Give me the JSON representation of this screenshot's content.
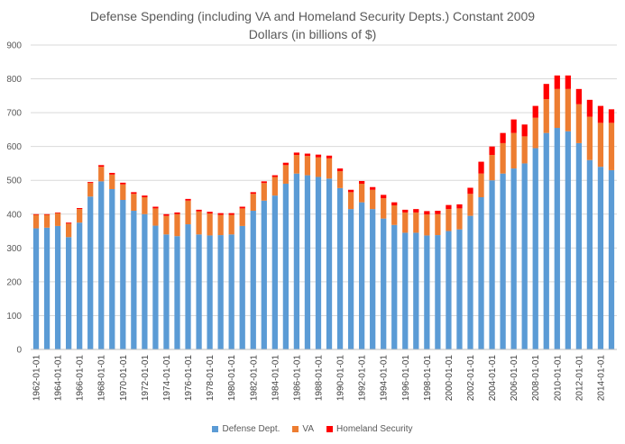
{
  "chart_data": {
    "type": "bar",
    "stacked": true,
    "title": "Defense Spending (including VA and Homeland Security Depts.) Constant 2009 Dollars (in billions of $)",
    "title_lines": [
      "Defense Spending (including VA and Homeland Security Depts.) Constant 2009",
      "Dollars (in billions of $)"
    ],
    "categories": [
      "1962-01-01",
      "1963-01-01",
      "1964-01-01",
      "1965-01-01",
      "1966-01-01",
      "1967-01-01",
      "1968-01-01",
      "1969-01-01",
      "1970-01-01",
      "1971-01-01",
      "1972-01-01",
      "1973-01-01",
      "1974-01-01",
      "1975-01-01",
      "1976-01-01",
      "1977-01-01",
      "1978-01-01",
      "1979-01-01",
      "1980-01-01",
      "1981-01-01",
      "1982-01-01",
      "1983-01-01",
      "1984-01-01",
      "1985-01-01",
      "1986-01-01",
      "1987-01-01",
      "1988-01-01",
      "1989-01-01",
      "1990-01-01",
      "1991-01-01",
      "1992-01-01",
      "1993-01-01",
      "1994-01-01",
      "1995-01-01",
      "1996-01-01",
      "1997-01-01",
      "1998-01-01",
      "1999-01-01",
      "2000-01-01",
      "2001-01-01",
      "2002-01-01",
      "2003-01-01",
      "2004-01-01",
      "2005-01-01",
      "2006-01-01",
      "2007-01-01",
      "2008-01-01",
      "2009-01-01",
      "2010-01-01",
      "2011-01-01",
      "2012-01-01",
      "2013-01-01",
      "2014-01-01",
      "2015-01-01"
    ],
    "x_tick_labels": [
      "1962-01-01",
      "1964-01-01",
      "1966-01-01",
      "1968-01-01",
      "1970-01-01",
      "1972-01-01",
      "1974-01-01",
      "1976-01-01",
      "1978-01-01",
      "1980-01-01",
      "1982-01-01",
      "1984-01-01",
      "1986-01-01",
      "1988-01-01",
      "1990-01-01",
      "1992-01-01",
      "1994-01-01",
      "1996-01-01",
      "1998-01-01",
      "2000-01-01",
      "2002-01-01",
      "2004-01-01",
      "2006-01-01",
      "2008-01-01",
      "2010-01-01",
      "2012-01-01",
      "2014-01-01"
    ],
    "series": [
      {
        "name": "Defense Dept.",
        "color": "#5b9bd5",
        "values": [
          358,
          360,
          365,
          332,
          375,
          452,
          497,
          474,
          442,
          410,
          400,
          366,
          340,
          335,
          370,
          340,
          337,
          338,
          340,
          365,
          410,
          440,
          455,
          490,
          520,
          515,
          510,
          505,
          477,
          415,
          435,
          415,
          387,
          368,
          345,
          345,
          337,
          338,
          350,
          355,
          395,
          450,
          500,
          520,
          535,
          550,
          595,
          640,
          655,
          645,
          610,
          560,
          540,
          530
        ]
      },
      {
        "name": "VA",
        "color": "#ed7d31",
        "values": [
          40,
          38,
          38,
          40,
          40,
          40,
          43,
          43,
          46,
          50,
          50,
          51,
          55,
          65,
          70,
          68,
          65,
          60,
          58,
          52,
          50,
          52,
          55,
          55,
          55,
          57,
          58,
          60,
          50,
          50,
          55,
          57,
          60,
          58,
          60,
          60,
          62,
          62,
          65,
          62,
          65,
          70,
          75,
          90,
          105,
          80,
          90,
          100,
          115,
          125,
          115,
          128,
          130,
          140
        ]
      },
      {
        "name": "Homeland Security",
        "color": "#ff0000",
        "values": [
          2,
          2,
          2,
          3,
          3,
          3,
          5,
          5,
          5,
          5,
          5,
          5,
          5,
          5,
          5,
          5,
          5,
          5,
          5,
          5,
          5,
          5,
          5,
          7,
          7,
          7,
          8,
          8,
          8,
          7,
          8,
          8,
          10,
          9,
          8,
          10,
          10,
          10,
          12,
          12,
          18,
          35,
          25,
          30,
          40,
          35,
          35,
          45,
          40,
          40,
          45,
          50,
          50,
          40
        ]
      }
    ],
    "ylim": [
      0,
      900
    ],
    "y_ticks": [
      0,
      100,
      200,
      300,
      400,
      500,
      600,
      700,
      800,
      900
    ],
    "grid": true,
    "legend_position": "bottom"
  }
}
